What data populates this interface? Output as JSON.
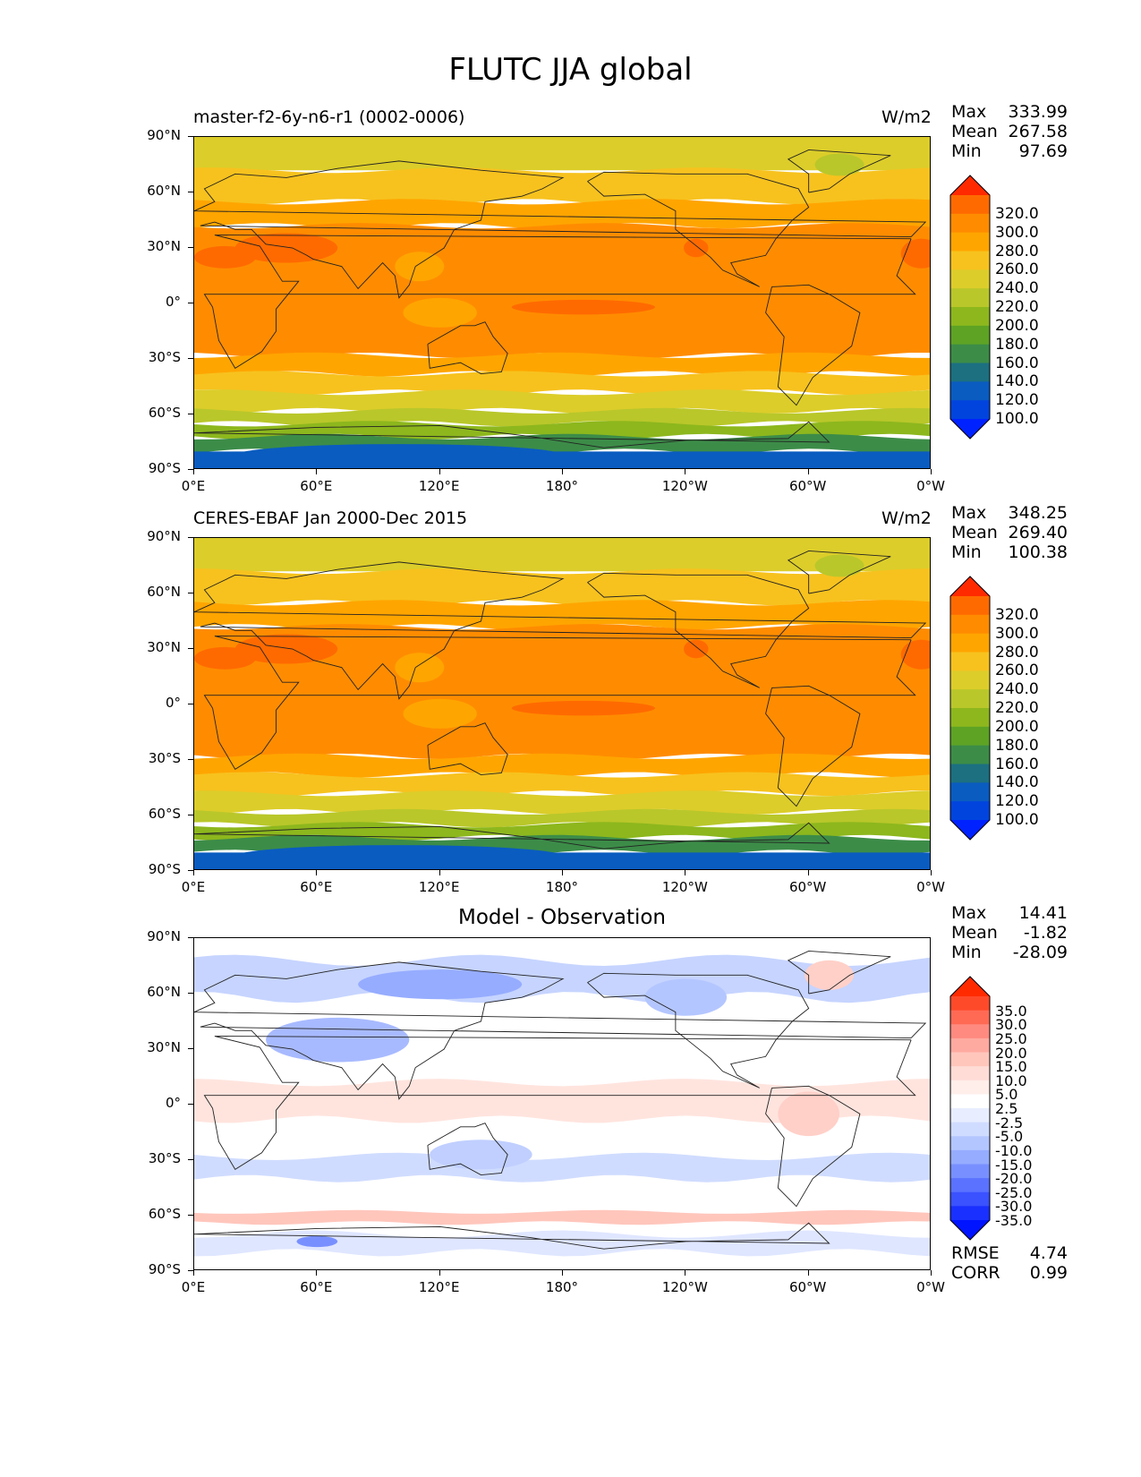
{
  "title": "FLUTC JJA global",
  "lat_ticks": [
    "90°N",
    "60°N",
    "30°N",
    "0°",
    "30°S",
    "60°S",
    "90°S"
  ],
  "lon_ticks": [
    "0°E",
    "60°E",
    "120°E",
    "180°",
    "120°W",
    "60°W",
    "0°W"
  ],
  "panels": [
    {
      "title": "master-f2-6y-n6-r1 (0002-0006)",
      "units": "W/m2",
      "stats": [
        {
          "label": "Max",
          "value": "333.99"
        },
        {
          "label": "Mean",
          "value": "267.58"
        },
        {
          "label": "Min",
          "value": "97.69"
        }
      ],
      "colorbar": {
        "labels": [
          "320.0",
          "300.0",
          "280.0",
          "260.0",
          "240.0",
          "220.0",
          "200.0",
          "180.0",
          "160.0",
          "140.0",
          "120.0",
          "100.0"
        ],
        "colors": [
          "#ff2a00",
          "#ff6a00",
          "#ff8c00",
          "#ffa500",
          "#f7c21e",
          "#dccd2a",
          "#b9c72a",
          "#8db71d",
          "#5ea324",
          "#3c8c48",
          "#1c7080",
          "#0a5cc0",
          "#0044dd",
          "#0022ff"
        ]
      }
    },
    {
      "title": "CERES-EBAF Jan 2000-Dec 2015",
      "units": "W/m2",
      "stats": [
        {
          "label": "Max",
          "value": "348.25"
        },
        {
          "label": "Mean",
          "value": "269.40"
        },
        {
          "label": "Min",
          "value": "100.38"
        }
      ],
      "colorbar": {
        "labels": [
          "320.0",
          "300.0",
          "280.0",
          "260.0",
          "240.0",
          "220.0",
          "200.0",
          "180.0",
          "160.0",
          "140.0",
          "120.0",
          "100.0"
        ],
        "colors": [
          "#ff2a00",
          "#ff6a00",
          "#ff8c00",
          "#ffa500",
          "#f7c21e",
          "#dccd2a",
          "#b9c72a",
          "#8db71d",
          "#5ea324",
          "#3c8c48",
          "#1c7080",
          "#0a5cc0",
          "#0044dd",
          "#0022ff"
        ]
      }
    },
    {
      "title": "Model - Observation",
      "units": "",
      "stats": [
        {
          "label": "Max",
          "value": "14.41"
        },
        {
          "label": "Mean",
          "value": "-1.82"
        },
        {
          "label": "Min",
          "value": "-28.09"
        }
      ],
      "extra_stats": [
        {
          "label": "RMSE",
          "value": "4.74"
        },
        {
          "label": "CORR",
          "value": "0.99"
        }
      ],
      "colorbar": {
        "labels": [
          "35.0",
          "30.0",
          "25.0",
          "20.0",
          "15.0",
          "10.0",
          "5.0",
          "2.5",
          "-2.5",
          "-5.0",
          "-10.0",
          "-15.0",
          "-20.0",
          "-25.0",
          "-30.0",
          "-35.0"
        ],
        "colors": [
          "#ff2a00",
          "#ff4a2a",
          "#ff6a55",
          "#ff8a80",
          "#ffaaa0",
          "#ffc6bc",
          "#ffdcd6",
          "#ffeeea",
          "#ffffff",
          "#e8eeff",
          "#d0dcff",
          "#b4c6ff",
          "#96acff",
          "#7890ff",
          "#5a72ff",
          "#3a52ff",
          "#1a30ff",
          "#0014ff"
        ]
      }
    }
  ]
}
